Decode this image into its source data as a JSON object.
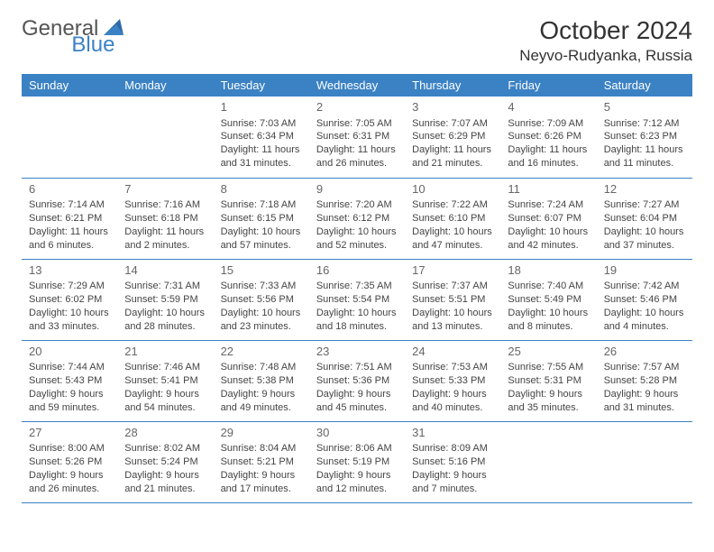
{
  "branding": {
    "logo_part1": "General",
    "logo_part2": "Blue",
    "logo_color_gray": "#555555",
    "logo_color_blue": "#3b82c4"
  },
  "header": {
    "month_title": "October 2024",
    "location": "Neyvo-Rudyanka, Russia"
  },
  "calendar": {
    "header_bg": "#3b82c4",
    "header_fg": "#ffffff",
    "border_color": "#3b82c4",
    "day_headers": [
      "Sunday",
      "Monday",
      "Tuesday",
      "Wednesday",
      "Thursday",
      "Friday",
      "Saturday"
    ],
    "weeks": [
      [
        null,
        null,
        {
          "n": "1",
          "sr": "Sunrise: 7:03 AM",
          "ss": "Sunset: 6:34 PM",
          "dl": "Daylight: 11 hours and 31 minutes."
        },
        {
          "n": "2",
          "sr": "Sunrise: 7:05 AM",
          "ss": "Sunset: 6:31 PM",
          "dl": "Daylight: 11 hours and 26 minutes."
        },
        {
          "n": "3",
          "sr": "Sunrise: 7:07 AM",
          "ss": "Sunset: 6:29 PM",
          "dl": "Daylight: 11 hours and 21 minutes."
        },
        {
          "n": "4",
          "sr": "Sunrise: 7:09 AM",
          "ss": "Sunset: 6:26 PM",
          "dl": "Daylight: 11 hours and 16 minutes."
        },
        {
          "n": "5",
          "sr": "Sunrise: 7:12 AM",
          "ss": "Sunset: 6:23 PM",
          "dl": "Daylight: 11 hours and 11 minutes."
        }
      ],
      [
        {
          "n": "6",
          "sr": "Sunrise: 7:14 AM",
          "ss": "Sunset: 6:21 PM",
          "dl": "Daylight: 11 hours and 6 minutes."
        },
        {
          "n": "7",
          "sr": "Sunrise: 7:16 AM",
          "ss": "Sunset: 6:18 PM",
          "dl": "Daylight: 11 hours and 2 minutes."
        },
        {
          "n": "8",
          "sr": "Sunrise: 7:18 AM",
          "ss": "Sunset: 6:15 PM",
          "dl": "Daylight: 10 hours and 57 minutes."
        },
        {
          "n": "9",
          "sr": "Sunrise: 7:20 AM",
          "ss": "Sunset: 6:12 PM",
          "dl": "Daylight: 10 hours and 52 minutes."
        },
        {
          "n": "10",
          "sr": "Sunrise: 7:22 AM",
          "ss": "Sunset: 6:10 PM",
          "dl": "Daylight: 10 hours and 47 minutes."
        },
        {
          "n": "11",
          "sr": "Sunrise: 7:24 AM",
          "ss": "Sunset: 6:07 PM",
          "dl": "Daylight: 10 hours and 42 minutes."
        },
        {
          "n": "12",
          "sr": "Sunrise: 7:27 AM",
          "ss": "Sunset: 6:04 PM",
          "dl": "Daylight: 10 hours and 37 minutes."
        }
      ],
      [
        {
          "n": "13",
          "sr": "Sunrise: 7:29 AM",
          "ss": "Sunset: 6:02 PM",
          "dl": "Daylight: 10 hours and 33 minutes."
        },
        {
          "n": "14",
          "sr": "Sunrise: 7:31 AM",
          "ss": "Sunset: 5:59 PM",
          "dl": "Daylight: 10 hours and 28 minutes."
        },
        {
          "n": "15",
          "sr": "Sunrise: 7:33 AM",
          "ss": "Sunset: 5:56 PM",
          "dl": "Daylight: 10 hours and 23 minutes."
        },
        {
          "n": "16",
          "sr": "Sunrise: 7:35 AM",
          "ss": "Sunset: 5:54 PM",
          "dl": "Daylight: 10 hours and 18 minutes."
        },
        {
          "n": "17",
          "sr": "Sunrise: 7:37 AM",
          "ss": "Sunset: 5:51 PM",
          "dl": "Daylight: 10 hours and 13 minutes."
        },
        {
          "n": "18",
          "sr": "Sunrise: 7:40 AM",
          "ss": "Sunset: 5:49 PM",
          "dl": "Daylight: 10 hours and 8 minutes."
        },
        {
          "n": "19",
          "sr": "Sunrise: 7:42 AM",
          "ss": "Sunset: 5:46 PM",
          "dl": "Daylight: 10 hours and 4 minutes."
        }
      ],
      [
        {
          "n": "20",
          "sr": "Sunrise: 7:44 AM",
          "ss": "Sunset: 5:43 PM",
          "dl": "Daylight: 9 hours and 59 minutes."
        },
        {
          "n": "21",
          "sr": "Sunrise: 7:46 AM",
          "ss": "Sunset: 5:41 PM",
          "dl": "Daylight: 9 hours and 54 minutes."
        },
        {
          "n": "22",
          "sr": "Sunrise: 7:48 AM",
          "ss": "Sunset: 5:38 PM",
          "dl": "Daylight: 9 hours and 49 minutes."
        },
        {
          "n": "23",
          "sr": "Sunrise: 7:51 AM",
          "ss": "Sunset: 5:36 PM",
          "dl": "Daylight: 9 hours and 45 minutes."
        },
        {
          "n": "24",
          "sr": "Sunrise: 7:53 AM",
          "ss": "Sunset: 5:33 PM",
          "dl": "Daylight: 9 hours and 40 minutes."
        },
        {
          "n": "25",
          "sr": "Sunrise: 7:55 AM",
          "ss": "Sunset: 5:31 PM",
          "dl": "Daylight: 9 hours and 35 minutes."
        },
        {
          "n": "26",
          "sr": "Sunrise: 7:57 AM",
          "ss": "Sunset: 5:28 PM",
          "dl": "Daylight: 9 hours and 31 minutes."
        }
      ],
      [
        {
          "n": "27",
          "sr": "Sunrise: 8:00 AM",
          "ss": "Sunset: 5:26 PM",
          "dl": "Daylight: 9 hours and 26 minutes."
        },
        {
          "n": "28",
          "sr": "Sunrise: 8:02 AM",
          "ss": "Sunset: 5:24 PM",
          "dl": "Daylight: 9 hours and 21 minutes."
        },
        {
          "n": "29",
          "sr": "Sunrise: 8:04 AM",
          "ss": "Sunset: 5:21 PM",
          "dl": "Daylight: 9 hours and 17 minutes."
        },
        {
          "n": "30",
          "sr": "Sunrise: 8:06 AM",
          "ss": "Sunset: 5:19 PM",
          "dl": "Daylight: 9 hours and 12 minutes."
        },
        {
          "n": "31",
          "sr": "Sunrise: 8:09 AM",
          "ss": "Sunset: 5:16 PM",
          "dl": "Daylight: 9 hours and 7 minutes."
        },
        null,
        null
      ]
    ]
  }
}
